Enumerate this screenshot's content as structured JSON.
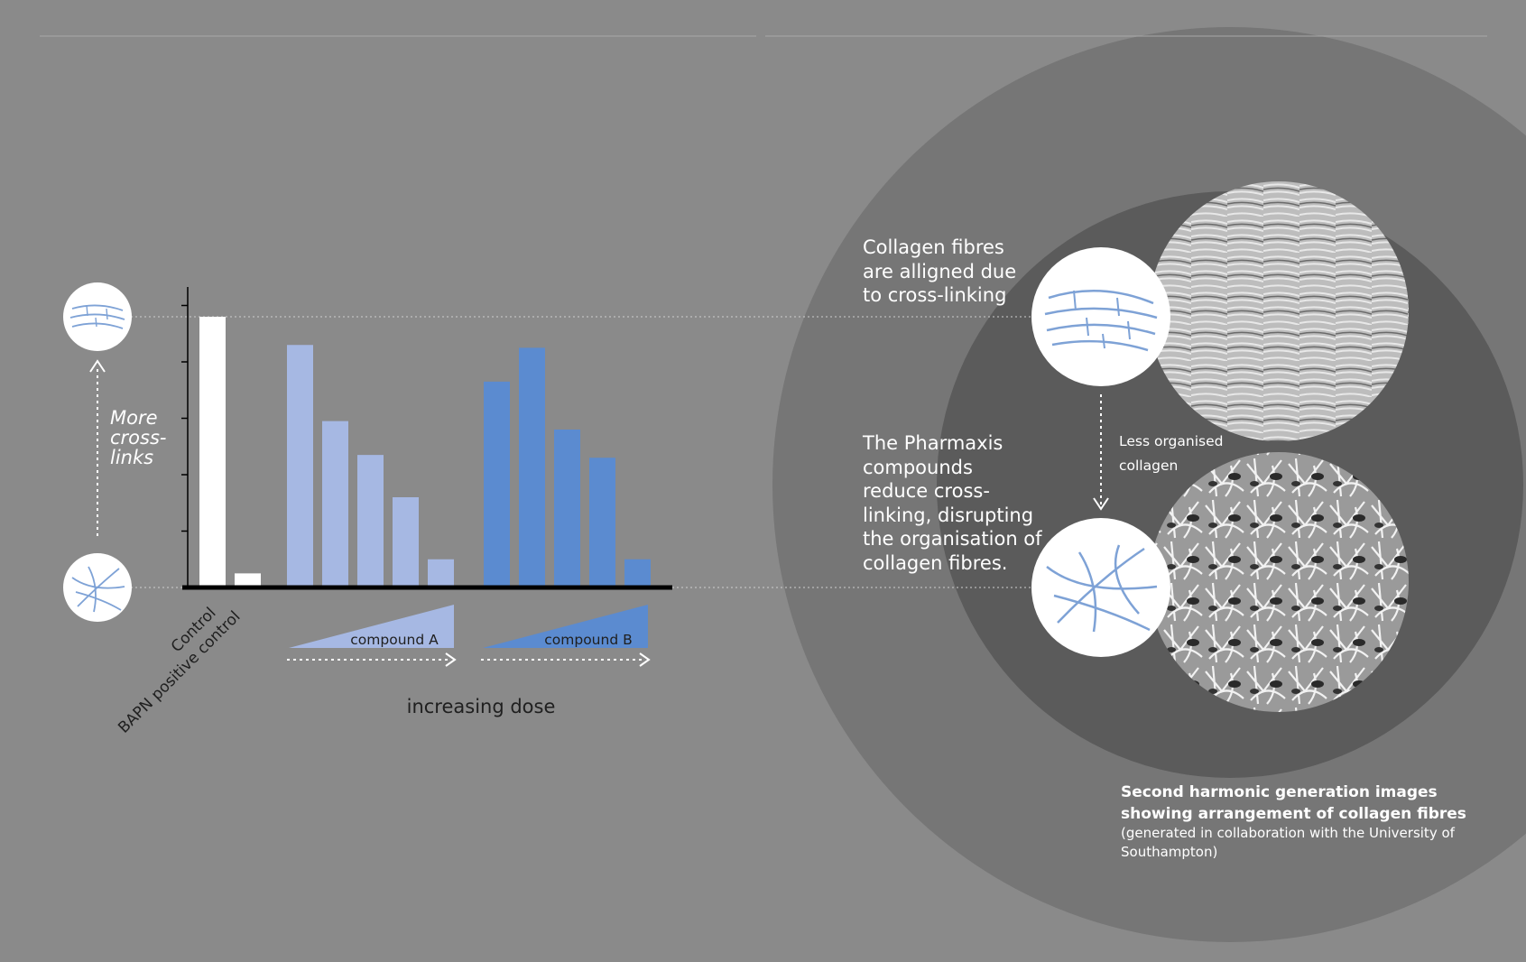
{
  "colors": {
    "background": "#8a8a8a",
    "outer_circle": "#767676",
    "inner_circle": "#5b5b5b",
    "control_bar": "#ffffff",
    "compound_a": "#a6b8e3",
    "compound_b": "#5b8bd0",
    "axis": "#000000",
    "fiber_icon": "#7ea2d6"
  },
  "chart_data": {
    "type": "bar",
    "title": "",
    "xlabel": "increasing dose",
    "ylabel": "",
    "ylim": [
      0,
      5
    ],
    "groups": [
      {
        "name": "Control",
        "values": [
          4.8
        ],
        "color": "control_bar"
      },
      {
        "name": "BAPN positive control",
        "values": [
          0.25
        ],
        "color": "control_bar"
      },
      {
        "name": "compound A",
        "values": [
          4.3,
          2.95,
          2.35,
          1.6,
          0.5
        ],
        "color": "compound_a"
      },
      {
        "name": "compound B",
        "values": [
          3.65,
          4.25,
          2.8,
          2.3,
          0.5
        ],
        "color": "compound_b"
      }
    ],
    "tick_labels": [
      "Control",
      "BAPN positive control"
    ],
    "group_labels": [
      "compound A",
      "compound B"
    ],
    "grid": false,
    "legend": "none"
  },
  "left_scale": {
    "label": "More cross-links",
    "top_icon": "aligned-fibres-icon",
    "bottom_icon": "disorganised-fibres-icon"
  },
  "right_panel": {
    "text_aligned": "Collagen fibres are alligned due to cross-linking",
    "text_pharmaxis": "The Pharmaxis compounds reduce cross-linking, disrupting the organisation of collagen fibres.",
    "arrow_label": "Less organised collagen",
    "caption_title": "Second harmonic generation images showing arrangement of  collagen fibres",
    "caption_note": "(generated  in collaboration with the University of Southampton)",
    "image_top": "aligned-collagen-micrograph",
    "image_bottom": "disorganised-collagen-micrograph"
  }
}
